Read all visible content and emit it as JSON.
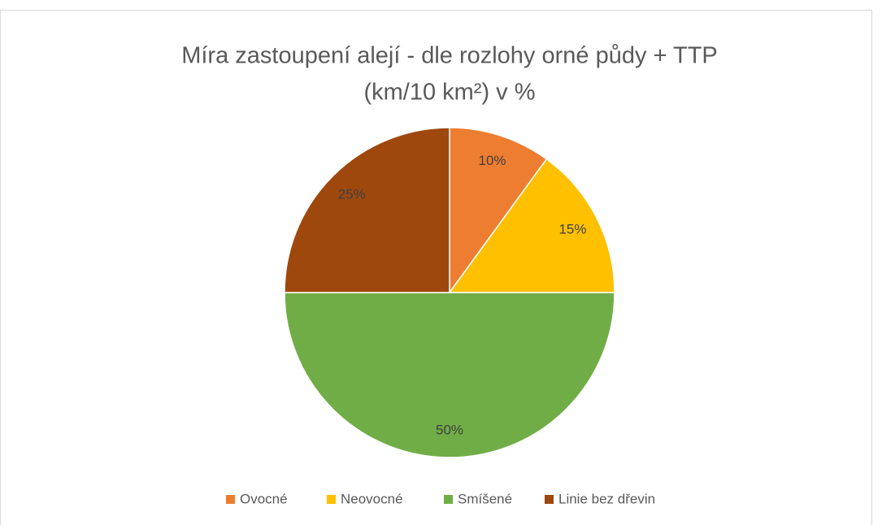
{
  "chart_data": {
    "type": "pie",
    "title": [
      "Míra zastoupení alejí - dle rozlohy orné půdy + TTP",
      "(km/10 km²) v %"
    ],
    "categories": [
      "Ovocné",
      "Neovocné",
      "Smíšené",
      "Linie bez dřevin"
    ],
    "values": [
      10,
      15,
      50,
      25
    ],
    "value_labels": [
      "10%",
      "15%",
      "50%",
      "25%"
    ],
    "colors": [
      "#ED7D31",
      "#FFC000",
      "#70AD47",
      "#9E480E"
    ],
    "legend": "bottom"
  }
}
